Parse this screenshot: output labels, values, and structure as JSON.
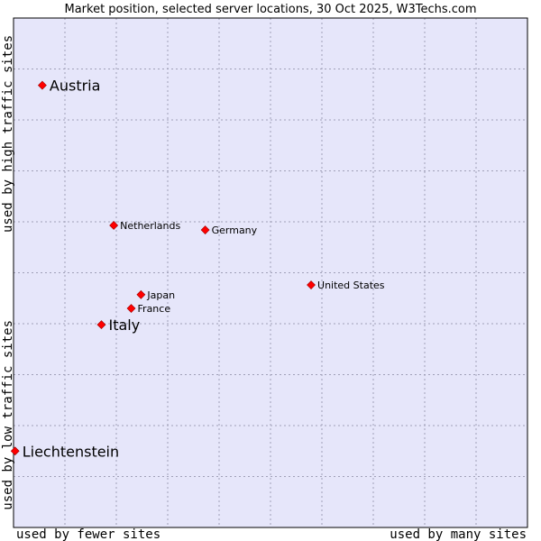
{
  "chart_data": {
    "type": "scatter",
    "title": "Market position, selected server locations, 30 Oct 2025, W3Techs.com",
    "xlabel_left": "used by fewer sites",
    "xlabel_right": "used by many sites",
    "ylabel_top": "used by high traffic sites",
    "ylabel_bottom": "used by low traffic sites",
    "xlim": [
      0,
      100
    ],
    "ylim": [
      0,
      100
    ],
    "grid": true,
    "colors": {
      "plot_bg": "#e6e6fa",
      "grid": "#a0a0b8",
      "point": "#ff0000",
      "frame": "#000000"
    },
    "points": [
      {
        "name": "Austria",
        "x": 5.6,
        "y": 86.8,
        "highlight": true
      },
      {
        "name": "Netherlands",
        "x": 19.5,
        "y": 59.3,
        "highlight": false
      },
      {
        "name": "Germany",
        "x": 37.3,
        "y": 58.4,
        "highlight": false
      },
      {
        "name": "United States",
        "x": 57.9,
        "y": 47.6,
        "highlight": false
      },
      {
        "name": "Japan",
        "x": 24.8,
        "y": 45.7,
        "highlight": false
      },
      {
        "name": "France",
        "x": 22.9,
        "y": 43.0,
        "highlight": false
      },
      {
        "name": "Italy",
        "x": 17.1,
        "y": 39.8,
        "highlight": true
      },
      {
        "name": "Liechtenstein",
        "x": 0.3,
        "y": 15.0,
        "highlight": true
      }
    ]
  }
}
